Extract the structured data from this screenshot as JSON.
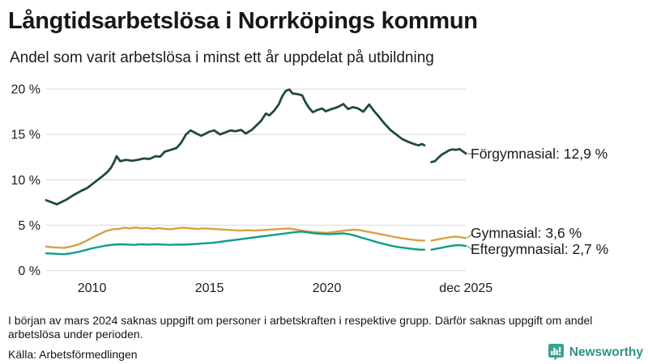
{
  "header": {
    "title": "Långtidsarbetslösa i Norrköpings kommun",
    "subtitle": "Andel som varit arbetslösa i minst ett år uppdelat på utbildning"
  },
  "chart_data": {
    "type": "line",
    "title": "Långtidsarbetslösa i Norrköpings kommun",
    "subtitle": "Andel som varit arbetslösa i minst ett år uppdelat på utbildning",
    "unit": "%",
    "grid": true,
    "legend_position": "end-of-line-labels-right",
    "x_axis": {
      "range": [
        2008.05,
        2025.92
      ],
      "ticks": [
        {
          "x": 2010,
          "label": "2010"
        },
        {
          "x": 2015,
          "label": "2015"
        },
        {
          "x": 2020,
          "label": "2020"
        },
        {
          "x": 2025.92,
          "label": "dec 2025"
        }
      ]
    },
    "y_axis": {
      "range": [
        0,
        20
      ],
      "ticks": [
        {
          "v": 0,
          "label": "0 %"
        },
        {
          "v": 5,
          "label": "5 %"
        },
        {
          "v": 10,
          "label": "10 %"
        },
        {
          "v": 15,
          "label": "15 %"
        },
        {
          "v": 20,
          "label": "20 %"
        }
      ]
    },
    "data_gap": {
      "from": 2024.15,
      "to": 2024.45
    },
    "series": [
      {
        "id": "forgymnasial",
        "name": "Förgymnasial",
        "end_label": "Förgymnasial: 12,9 %",
        "end_value": "12,9 %",
        "color": "#1f4a41",
        "points": [
          [
            2008.05,
            7.75
          ],
          [
            2008.3,
            7.5
          ],
          [
            2008.5,
            7.3
          ],
          [
            2008.7,
            7.55
          ],
          [
            2008.9,
            7.8
          ],
          [
            2009.2,
            8.3
          ],
          [
            2009.55,
            8.8
          ],
          [
            2009.8,
            9.1
          ],
          [
            2010.1,
            9.7
          ],
          [
            2010.4,
            10.3
          ],
          [
            2010.65,
            10.85
          ],
          [
            2010.8,
            11.3
          ],
          [
            2010.95,
            12.0
          ],
          [
            2011.05,
            12.6
          ],
          [
            2011.2,
            12.05
          ],
          [
            2011.45,
            12.2
          ],
          [
            2011.7,
            12.1
          ],
          [
            2011.95,
            12.2
          ],
          [
            2012.2,
            12.35
          ],
          [
            2012.45,
            12.3
          ],
          [
            2012.7,
            12.6
          ],
          [
            2012.9,
            12.55
          ],
          [
            2013.1,
            13.1
          ],
          [
            2013.35,
            13.3
          ],
          [
            2013.6,
            13.5
          ],
          [
            2013.8,
            14.1
          ],
          [
            2014.0,
            15.0
          ],
          [
            2014.2,
            15.45
          ],
          [
            2014.45,
            15.1
          ],
          [
            2014.65,
            14.85
          ],
          [
            2015.0,
            15.3
          ],
          [
            2015.2,
            15.45
          ],
          [
            2015.45,
            15.0
          ],
          [
            2015.7,
            15.25
          ],
          [
            2015.9,
            15.45
          ],
          [
            2016.1,
            15.35
          ],
          [
            2016.35,
            15.5
          ],
          [
            2016.55,
            15.1
          ],
          [
            2016.8,
            15.5
          ],
          [
            2017.0,
            16.0
          ],
          [
            2017.2,
            16.5
          ],
          [
            2017.4,
            17.3
          ],
          [
            2017.55,
            17.1
          ],
          [
            2017.75,
            17.6
          ],
          [
            2017.95,
            18.3
          ],
          [
            2018.1,
            19.2
          ],
          [
            2018.25,
            19.8
          ],
          [
            2018.4,
            19.95
          ],
          [
            2018.55,
            19.5
          ],
          [
            2018.75,
            19.45
          ],
          [
            2018.95,
            19.3
          ],
          [
            2019.1,
            18.5
          ],
          [
            2019.25,
            17.9
          ],
          [
            2019.4,
            17.45
          ],
          [
            2019.6,
            17.7
          ],
          [
            2019.8,
            17.85
          ],
          [
            2019.95,
            17.55
          ],
          [
            2020.15,
            17.75
          ],
          [
            2020.45,
            18.0
          ],
          [
            2020.7,
            18.35
          ],
          [
            2020.9,
            17.8
          ],
          [
            2021.1,
            18.0
          ],
          [
            2021.3,
            17.9
          ],
          [
            2021.55,
            17.5
          ],
          [
            2021.8,
            18.3
          ],
          [
            2022.0,
            17.6
          ],
          [
            2022.2,
            17.0
          ],
          [
            2022.45,
            16.2
          ],
          [
            2022.7,
            15.5
          ],
          [
            2022.95,
            15.0
          ],
          [
            2023.2,
            14.5
          ],
          [
            2023.45,
            14.2
          ],
          [
            2023.7,
            13.95
          ],
          [
            2023.9,
            13.8
          ],
          [
            2024.05,
            13.95
          ],
          [
            2024.15,
            13.8
          ],
          null,
          [
            2024.45,
            11.95
          ],
          [
            2024.6,
            12.05
          ],
          [
            2024.75,
            12.45
          ],
          [
            2024.9,
            12.8
          ],
          [
            2025.05,
            13.0
          ],
          [
            2025.2,
            13.25
          ],
          [
            2025.35,
            13.35
          ],
          [
            2025.5,
            13.3
          ],
          [
            2025.65,
            13.4
          ],
          [
            2025.8,
            13.1
          ],
          [
            2025.92,
            12.9
          ]
        ]
      },
      {
        "id": "gymnasial",
        "name": "Gymnasial",
        "end_label": "Gymnasial:  3,6 %",
        "end_value": "3,6 %",
        "color": "#d8a13f",
        "points": [
          [
            2008.05,
            2.65
          ],
          [
            2008.4,
            2.55
          ],
          [
            2008.8,
            2.5
          ],
          [
            2009.1,
            2.65
          ],
          [
            2009.4,
            2.85
          ],
          [
            2009.7,
            3.2
          ],
          [
            2010.0,
            3.6
          ],
          [
            2010.3,
            4.0
          ],
          [
            2010.6,
            4.35
          ],
          [
            2010.9,
            4.55
          ],
          [
            2011.15,
            4.6
          ],
          [
            2011.4,
            4.72
          ],
          [
            2011.6,
            4.65
          ],
          [
            2011.85,
            4.75
          ],
          [
            2012.1,
            4.65
          ],
          [
            2012.35,
            4.7
          ],
          [
            2012.6,
            4.6
          ],
          [
            2012.85,
            4.68
          ],
          [
            2013.1,
            4.6
          ],
          [
            2013.35,
            4.55
          ],
          [
            2013.6,
            4.65
          ],
          [
            2013.9,
            4.72
          ],
          [
            2014.2,
            4.65
          ],
          [
            2014.5,
            4.6
          ],
          [
            2014.8,
            4.65
          ],
          [
            2015.1,
            4.6
          ],
          [
            2015.4,
            4.55
          ],
          [
            2015.7,
            4.5
          ],
          [
            2016.0,
            4.45
          ],
          [
            2016.3,
            4.4
          ],
          [
            2016.6,
            4.45
          ],
          [
            2016.9,
            4.4
          ],
          [
            2017.2,
            4.45
          ],
          [
            2017.5,
            4.5
          ],
          [
            2017.8,
            4.55
          ],
          [
            2018.1,
            4.6
          ],
          [
            2018.35,
            4.65
          ],
          [
            2018.6,
            4.55
          ],
          [
            2018.85,
            4.45
          ],
          [
            2019.1,
            4.35
          ],
          [
            2019.4,
            4.25
          ],
          [
            2019.7,
            4.2
          ],
          [
            2020.0,
            4.15
          ],
          [
            2020.3,
            4.25
          ],
          [
            2020.6,
            4.35
          ],
          [
            2020.9,
            4.45
          ],
          [
            2021.15,
            4.5
          ],
          [
            2021.4,
            4.45
          ],
          [
            2021.7,
            4.3
          ],
          [
            2022.0,
            4.15
          ],
          [
            2022.3,
            4.0
          ],
          [
            2022.6,
            3.85
          ],
          [
            2022.9,
            3.7
          ],
          [
            2023.2,
            3.55
          ],
          [
            2023.5,
            3.45
          ],
          [
            2023.8,
            3.35
          ],
          [
            2024.05,
            3.3
          ],
          [
            2024.15,
            3.32
          ],
          null,
          [
            2024.45,
            3.3
          ],
          [
            2024.7,
            3.42
          ],
          [
            2024.95,
            3.55
          ],
          [
            2025.2,
            3.65
          ],
          [
            2025.45,
            3.75
          ],
          [
            2025.65,
            3.7
          ],
          [
            2025.8,
            3.62
          ],
          [
            2025.92,
            3.6
          ]
        ]
      },
      {
        "id": "eftergymnasial",
        "name": "Eftergymnasial",
        "end_label": "Eftergymnasial:  2,7 %",
        "end_value": "2,7 %",
        "color": "#0d9e88",
        "points": [
          [
            2008.05,
            1.9
          ],
          [
            2008.4,
            1.85
          ],
          [
            2008.8,
            1.8
          ],
          [
            2009.1,
            1.9
          ],
          [
            2009.4,
            2.05
          ],
          [
            2009.7,
            2.25
          ],
          [
            2010.0,
            2.45
          ],
          [
            2010.3,
            2.6
          ],
          [
            2010.6,
            2.75
          ],
          [
            2010.9,
            2.85
          ],
          [
            2011.2,
            2.9
          ],
          [
            2011.5,
            2.87
          ],
          [
            2011.8,
            2.83
          ],
          [
            2012.1,
            2.9
          ],
          [
            2012.4,
            2.86
          ],
          [
            2012.7,
            2.9
          ],
          [
            2013.0,
            2.87
          ],
          [
            2013.3,
            2.83
          ],
          [
            2013.6,
            2.87
          ],
          [
            2013.9,
            2.85
          ],
          [
            2014.2,
            2.9
          ],
          [
            2014.5,
            2.95
          ],
          [
            2014.8,
            3.0
          ],
          [
            2015.1,
            3.05
          ],
          [
            2015.4,
            3.15
          ],
          [
            2015.7,
            3.25
          ],
          [
            2016.0,
            3.35
          ],
          [
            2016.3,
            3.45
          ],
          [
            2016.6,
            3.55
          ],
          [
            2016.9,
            3.65
          ],
          [
            2017.2,
            3.75
          ],
          [
            2017.5,
            3.85
          ],
          [
            2017.8,
            3.95
          ],
          [
            2018.1,
            4.05
          ],
          [
            2018.4,
            4.15
          ],
          [
            2018.7,
            4.25
          ],
          [
            2018.95,
            4.3
          ],
          [
            2019.2,
            4.2
          ],
          [
            2019.5,
            4.1
          ],
          [
            2019.8,
            4.05
          ],
          [
            2020.1,
            4.0
          ],
          [
            2020.4,
            4.05
          ],
          [
            2020.7,
            4.1
          ],
          [
            2020.95,
            4.0
          ],
          [
            2021.2,
            3.85
          ],
          [
            2021.5,
            3.6
          ],
          [
            2021.8,
            3.4
          ],
          [
            2022.1,
            3.15
          ],
          [
            2022.4,
            2.95
          ],
          [
            2022.7,
            2.75
          ],
          [
            2023.0,
            2.6
          ],
          [
            2023.3,
            2.5
          ],
          [
            2023.6,
            2.4
          ],
          [
            2023.9,
            2.32
          ],
          [
            2024.15,
            2.3
          ],
          null,
          [
            2024.45,
            2.3
          ],
          [
            2024.7,
            2.42
          ],
          [
            2024.95,
            2.55
          ],
          [
            2025.2,
            2.68
          ],
          [
            2025.45,
            2.78
          ],
          [
            2025.65,
            2.8
          ],
          [
            2025.8,
            2.75
          ],
          [
            2025.92,
            2.7
          ]
        ]
      }
    ],
    "colors": {
      "grid": "#e0e0e3",
      "axis_text": "#1c1c1c",
      "connector": "#8c8c8c"
    }
  },
  "footer": {
    "note": "I början av mars 2024 saknas uppgift om personer i arbetskraften i respektive grupp. Därför saknas uppgift om andel arbetslösa under perioden.",
    "source": "Källa: Arbetsförmedlingen",
    "brand": "Newsworthy",
    "brand_color": "#2d9485",
    "logo_color": "#3aa392"
  }
}
